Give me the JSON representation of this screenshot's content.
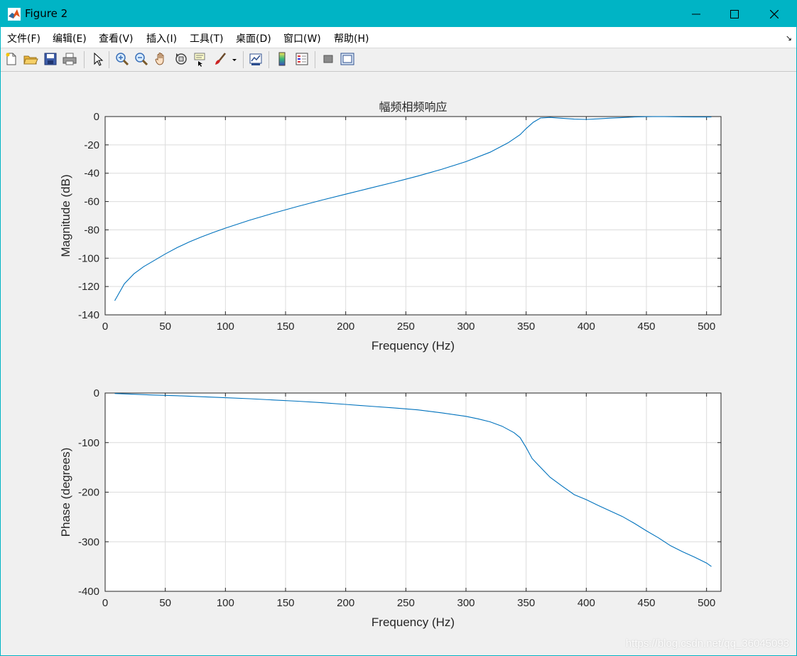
{
  "window": {
    "title": "Figure 2",
    "accent_color": "#00b4c5",
    "controls": [
      "minimize-icon",
      "maximize-icon",
      "close-icon"
    ]
  },
  "menu": {
    "items": [
      "文件(F)",
      "编辑(E)",
      "查看(V)",
      "插入(I)",
      "工具(T)",
      "桌面(D)",
      "窗口(W)",
      "帮助(H)"
    ]
  },
  "toolbar": {
    "icons": [
      "new-figure-icon",
      "open-file-icon",
      "save-icon",
      "print-icon",
      "select-arrow-icon",
      "zoom-in-icon",
      "zoom-out-icon",
      "pan-hand-icon",
      "rotate-3d-icon",
      "data-cursor-icon",
      "brush-icon",
      "brush-dropdown-icon",
      "link-plot-icon",
      "colorbar-icon",
      "legend-icon",
      "hide-plot-tools-icon",
      "show-plot-tools-icon"
    ]
  },
  "watermark": "https://blog.csdn.net/qq_36045093",
  "chart_data": [
    {
      "type": "line",
      "title": "幅频相频响应",
      "xlabel": "Frequency (Hz)",
      "ylabel": "Magnitude (dB)",
      "xlim": [
        0,
        512
      ],
      "ylim": [
        -140,
        0
      ],
      "xticks": [
        0,
        50,
        100,
        150,
        200,
        250,
        300,
        350,
        400,
        450,
        500
      ],
      "yticks": [
        0,
        -20,
        -40,
        -60,
        -80,
        -100,
        -120,
        -140
      ],
      "grid": true,
      "line_color": "#0072bd",
      "series": [
        {
          "x": [
            8,
            16,
            24,
            32,
            40,
            50,
            60,
            70,
            80,
            90,
            100,
            120,
            140,
            160,
            180,
            200,
            220,
            240,
            260,
            280,
            300,
            320,
            335,
            345,
            350,
            356,
            362,
            370,
            380,
            390,
            400,
            410,
            420,
            430,
            440,
            450,
            460,
            470,
            480,
            490,
            500,
            504
          ],
          "y": [
            -130,
            -118,
            -111,
            -106,
            -102,
            -97,
            -92.5,
            -88.5,
            -85,
            -81.8,
            -78.8,
            -73.2,
            -68.2,
            -63.5,
            -59,
            -54.8,
            -50.6,
            -46.4,
            -42,
            -37.2,
            -31.8,
            -25.2,
            -18.5,
            -12.8,
            -8.5,
            -4,
            -1,
            -0.6,
            -1.2,
            -1.8,
            -2,
            -1.6,
            -1.1,
            -0.7,
            -0.3,
            -0.1,
            0,
            -0.1,
            -0.2,
            -0.3,
            -0.3,
            -0.3
          ]
        }
      ]
    },
    {
      "type": "line",
      "title": "",
      "xlabel": "Frequency (Hz)",
      "ylabel": "Phase (degrees)",
      "xlim": [
        0,
        512
      ],
      "ylim": [
        -400,
        0
      ],
      "xticks": [
        0,
        50,
        100,
        150,
        200,
        250,
        300,
        350,
        400,
        450,
        500
      ],
      "yticks": [
        0,
        -100,
        -200,
        -300,
        -400
      ],
      "grid": true,
      "line_color": "#0072bd",
      "series": [
        {
          "x": [
            8,
            20,
            40,
            60,
            80,
            100,
            120,
            140,
            160,
            180,
            200,
            220,
            240,
            260,
            280,
            300,
            310,
            320,
            330,
            340,
            345,
            350,
            355,
            360,
            370,
            380,
            390,
            400,
            410,
            420,
            430,
            440,
            450,
            460,
            470,
            480,
            490,
            500,
            504
          ],
          "y": [
            -1,
            -2,
            -4,
            -5.5,
            -7.5,
            -9.5,
            -11.5,
            -14,
            -16.5,
            -19.5,
            -23,
            -26.5,
            -30,
            -34,
            -40,
            -47,
            -52,
            -58,
            -67,
            -80,
            -90,
            -110,
            -132,
            -145,
            -170,
            -188,
            -205,
            -215,
            -227,
            -238,
            -249,
            -263,
            -278,
            -292,
            -308,
            -320,
            -331,
            -343,
            -350
          ]
        }
      ]
    }
  ]
}
